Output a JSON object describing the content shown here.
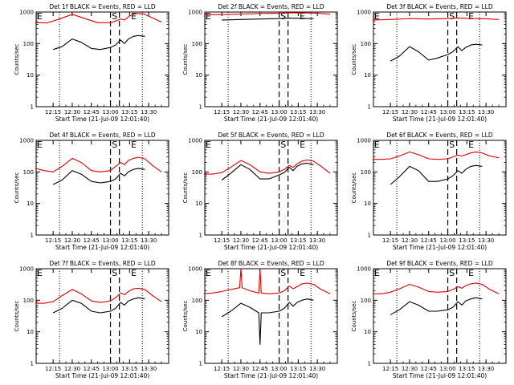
{
  "figure": {
    "background": "#ffffff",
    "series_colors": {
      "events": "#000000",
      "lld": "#e00000"
    }
  },
  "chart_data": [
    {
      "type": "line",
      "title": "Det 1f BLACK = Events, RED = LLD",
      "xlabel": "Start Time (21-Jul-09 12:01:40)",
      "ylabel": "Counts/sec",
      "yscale": "log",
      "ylim": [
        1,
        1000
      ],
      "y_ticks": [
        "1",
        "10",
        "100",
        "1000"
      ],
      "x_ticks": [
        "12:15",
        "12:30",
        "12:45",
        "13:00",
        "13:15",
        "13:30"
      ],
      "vline_labels": [
        "E",
        "S",
        "E"
      ],
      "series": [
        {
          "color": "black",
          "x": [
            "12:15",
            "12:22",
            "12:30",
            "12:37",
            "12:45",
            "12:52",
            "13:00",
            "13:04",
            "13:08",
            "13:11",
            "13:14",
            "13:18",
            "13:22",
            "13:27"
          ],
          "values": [
            65,
            80,
            140,
            110,
            70,
            65,
            75,
            90,
            130,
            100,
            140,
            170,
            180,
            170
          ]
        },
        {
          "color": "red",
          "x": [
            "12:01",
            "12:10",
            "12:20",
            "12:30",
            "12:40",
            "12:50",
            "13:00",
            "13:04",
            "13:08",
            "13:11",
            "13:15",
            "13:20",
            "13:26",
            "13:33",
            "13:40"
          ],
          "values": [
            460,
            450,
            600,
            850,
            620,
            460,
            460,
            520,
            600,
            560,
            750,
            900,
            880,
            650,
            480
          ]
        }
      ]
    },
    {
      "type": "line",
      "title": "Det 2f BLACK = Events, RED = LLD",
      "xlabel": "Start Time (21-Jul-09 12:01:40)",
      "ylabel": "Counts/sec",
      "yscale": "log",
      "ylim": [
        1,
        1000
      ],
      "y_ticks": [
        "1",
        "10",
        "100",
        "1000"
      ],
      "x_ticks": [
        "12:15",
        "12:30",
        "12:45",
        "13:00",
        "13:15",
        "13:30"
      ],
      "vline_labels": [
        "E",
        "S",
        "E"
      ],
      "series": [
        {
          "color": "black",
          "x": [
            "12:15",
            "12:30",
            "12:45",
            "13:00",
            "13:08",
            "13:15",
            "13:27"
          ],
          "values": [
            560,
            580,
            600,
            620,
            640,
            630,
            620
          ]
        },
        {
          "color": "red",
          "x": [
            "12:01",
            "12:15",
            "12:30",
            "12:45",
            "13:00",
            "13:08",
            "13:15",
            "13:30",
            "13:40"
          ],
          "values": [
            820,
            830,
            860,
            900,
            920,
            950,
            940,
            920,
            850
          ]
        }
      ]
    },
    {
      "type": "line",
      "title": "Det 3f BLACK = Events, RED = LLD",
      "xlabel": "Start Time (21-Jul-09 12:01:40)",
      "ylabel": "Counts/sec",
      "yscale": "log",
      "ylim": [
        1,
        1000
      ],
      "y_ticks": [
        "1",
        "10",
        "100",
        "1000"
      ],
      "x_ticks": [
        "12:15",
        "12:30",
        "12:45",
        "13:00",
        "13:15",
        "13:30"
      ],
      "vline_labels": [
        "E",
        "S",
        "E"
      ],
      "series": [
        {
          "color": "black",
          "x": [
            "12:15",
            "12:22",
            "12:30",
            "12:37",
            "12:45",
            "12:52",
            "13:00",
            "13:04",
            "13:08",
            "13:11",
            "13:14",
            "13:18",
            "13:22",
            "13:27"
          ],
          "values": [
            28,
            40,
            80,
            55,
            30,
            35,
            45,
            55,
            80,
            60,
            75,
            90,
            95,
            90
          ]
        },
        {
          "color": "red",
          "x": [
            "12:01",
            "12:15",
            "12:30",
            "12:45",
            "13:00",
            "13:08",
            "13:15",
            "13:30",
            "13:40"
          ],
          "values": [
            560,
            580,
            620,
            600,
            620,
            640,
            630,
            610,
            580
          ]
        }
      ]
    },
    {
      "type": "line",
      "title": "Det 4f BLACK = Events, RED = LLD",
      "xlabel": "Start Time (21-Jul-09 12:01:40)",
      "ylabel": "Counts/sec",
      "yscale": "log",
      "ylim": [
        1,
        1000
      ],
      "y_ticks": [
        "1",
        "10",
        "100",
        "1000"
      ],
      "x_ticks": [
        "12:15",
        "12:30",
        "12:45",
        "13:00",
        "13:15",
        "13:30"
      ],
      "vline_labels": [
        "E",
        "S",
        "E"
      ],
      "series": [
        {
          "color": "black",
          "x": [
            "12:15",
            "12:22",
            "12:30",
            "12:37",
            "12:45",
            "12:52",
            "13:00",
            "13:04",
            "13:08",
            "13:11",
            "13:14",
            "13:18",
            "13:22",
            "13:27"
          ],
          "values": [
            40,
            55,
            110,
            85,
            50,
            45,
            50,
            60,
            90,
            75,
            100,
            120,
            130,
            120
          ]
        },
        {
          "color": "red",
          "x": [
            "12:01",
            "12:08",
            "12:15",
            "12:22",
            "12:30",
            "12:37",
            "12:45",
            "12:52",
            "13:00",
            "13:04",
            "13:08",
            "13:11",
            "13:14",
            "13:18",
            "13:22",
            "13:27",
            "13:33",
            "13:40"
          ],
          "values": [
            130,
            110,
            100,
            150,
            270,
            200,
            110,
            100,
            110,
            150,
            200,
            170,
            230,
            270,
            290,
            260,
            160,
            100
          ]
        }
      ]
    },
    {
      "type": "line",
      "title": "Det 5f BLACK = Events, RED = LLD",
      "xlabel": "Start Time (21-Jul-09 12:01:40)",
      "ylabel": "Counts/sec",
      "yscale": "log",
      "ylim": [
        1,
        1000
      ],
      "y_ticks": [
        "1",
        "10",
        "100",
        "1000"
      ],
      "x_ticks": [
        "12:15",
        "12:30",
        "12:45",
        "13:00",
        "13:15",
        "13:30"
      ],
      "vline_labels": [
        "E",
        "S",
        "E"
      ],
      "series": [
        {
          "color": "black",
          "x": [
            "12:15",
            "12:22",
            "12:30",
            "12:37",
            "12:45",
            "12:52",
            "13:00",
            "13:04",
            "13:08",
            "13:11",
            "13:14",
            "13:18",
            "13:22",
            "13:27"
          ],
          "values": [
            55,
            90,
            170,
            120,
            60,
            60,
            80,
            95,
            140,
            110,
            150,
            180,
            190,
            170
          ]
        },
        {
          "color": "red",
          "x": [
            "12:01",
            "12:08",
            "12:15",
            "12:22",
            "12:30",
            "12:37",
            "12:45",
            "12:52",
            "13:00",
            "13:04",
            "13:08",
            "13:11",
            "13:14",
            "13:18",
            "13:22",
            "13:27",
            "13:33",
            "13:40"
          ],
          "values": [
            85,
            85,
            95,
            140,
            230,
            170,
            100,
            90,
            100,
            120,
            160,
            140,
            180,
            220,
            240,
            220,
            150,
            90
          ]
        }
      ]
    },
    {
      "type": "line",
      "title": "Det 6f BLACK = Events, RED = LLD",
      "xlabel": "Start Time (21-Jul-09 12:01:40)",
      "ylabel": "Counts/sec",
      "yscale": "log",
      "ylim": [
        1,
        1000
      ],
      "y_ticks": [
        "1",
        "10",
        "100",
        "1000"
      ],
      "x_ticks": [
        "12:15",
        "12:30",
        "12:45",
        "13:00",
        "13:15",
        "13:30"
      ],
      "vline_labels": [
        "E",
        "S",
        "E"
      ],
      "series": [
        {
          "color": "black",
          "x": [
            "12:15",
            "12:22",
            "12:30",
            "12:37",
            "12:45",
            "12:52",
            "13:00",
            "13:04",
            "13:08",
            "13:11",
            "13:14",
            "13:18",
            "13:22",
            "13:27"
          ],
          "values": [
            40,
            70,
            150,
            110,
            50,
            50,
            60,
            75,
            110,
            90,
            120,
            150,
            160,
            150
          ]
        },
        {
          "color": "red",
          "x": [
            "12:01",
            "12:08",
            "12:15",
            "12:22",
            "12:30",
            "12:37",
            "12:45",
            "12:52",
            "13:00",
            "13:04",
            "13:08",
            "13:11",
            "13:14",
            "13:18",
            "13:22",
            "13:27",
            "13:33",
            "13:40"
          ],
          "values": [
            250,
            250,
            260,
            320,
            430,
            350,
            260,
            250,
            260,
            300,
            340,
            320,
            350,
            400,
            430,
            400,
            320,
            280
          ]
        }
      ]
    },
    {
      "type": "line",
      "title": "Det 7f BLACK = Events, RED = LLD",
      "xlabel": "Start Time (21-Jul-09 12:01:40)",
      "ylabel": "Counts/sec",
      "yscale": "log",
      "ylim": [
        1,
        1000
      ],
      "y_ticks": [
        "1",
        "10",
        "100",
        "1000"
      ],
      "x_ticks": [
        "12:15",
        "12:30",
        "12:45",
        "13:00",
        "13:15",
        "13:30"
      ],
      "vline_labels": [
        "E",
        "S",
        "E"
      ],
      "series": [
        {
          "color": "black",
          "x": [
            "12:15",
            "12:22",
            "12:30",
            "12:37",
            "12:45",
            "12:52",
            "13:00",
            "13:04",
            "13:08",
            "13:11",
            "13:14",
            "13:18",
            "13:22",
            "13:27"
          ],
          "values": [
            40,
            55,
            100,
            80,
            45,
            40,
            45,
            55,
            85,
            70,
            95,
            110,
            120,
            110
          ]
        },
        {
          "color": "red",
          "x": [
            "12:01",
            "12:08",
            "12:15",
            "12:22",
            "12:30",
            "12:37",
            "12:45",
            "12:52",
            "13:00",
            "13:04",
            "13:08",
            "13:11",
            "13:14",
            "13:18",
            "13:22",
            "13:27",
            "13:33",
            "13:40"
          ],
          "values": [
            80,
            80,
            90,
            140,
            220,
            160,
            95,
            85,
            95,
            120,
            170,
            150,
            190,
            230,
            240,
            220,
            140,
            90
          ]
        }
      ]
    },
    {
      "type": "line",
      "title": "Det 8f BLACK = Events, RED = LLD",
      "xlabel": "Start Time (21-Jul-09 12:01:40)",
      "ylabel": "Counts/sec",
      "yscale": "log",
      "ylim": [
        1,
        1000
      ],
      "y_ticks": [
        "1",
        "10",
        "100",
        "1000"
      ],
      "x_ticks": [
        "12:15",
        "12:30",
        "12:45",
        "13:00",
        "13:15",
        "13:30"
      ],
      "vline_labels": [
        "E",
        "S",
        "E"
      ],
      "series": [
        {
          "color": "black",
          "x": [
            "12:15",
            "12:22",
            "12:30",
            "12:37",
            "12:44",
            "12:45",
            "12:46",
            "12:52",
            "13:00",
            "13:04",
            "13:08",
            "13:11",
            "13:14",
            "13:18",
            "13:22",
            "13:27"
          ],
          "values": [
            30,
            45,
            80,
            60,
            40,
            4,
            40,
            40,
            45,
            55,
            85,
            65,
            85,
            100,
            110,
            100
          ]
        },
        {
          "color": "red",
          "x": [
            "12:01",
            "12:08",
            "12:15",
            "12:22",
            "12:29",
            "12:30",
            "12:31",
            "12:37",
            "12:44",
            "12:45",
            "12:46",
            "12:52",
            "13:00",
            "13:04",
            "13:08",
            "13:11",
            "13:14",
            "13:18",
            "13:22",
            "13:27",
            "13:33",
            "13:40"
          ],
          "values": [
            160,
            170,
            190,
            220,
            250,
            1000,
            250,
            200,
            170,
            1000,
            170,
            160,
            170,
            200,
            280,
            230,
            270,
            330,
            350,
            320,
            220,
            160
          ]
        }
      ]
    },
    {
      "type": "line",
      "title": "Det 9f BLACK = Events, RED = LLD",
      "xlabel": "Start Time (21-Jul-09 12:01:40)",
      "ylabel": "Counts/sec",
      "yscale": "log",
      "ylim": [
        1,
        1000
      ],
      "y_ticks": [
        "1",
        "10",
        "100",
        "1000"
      ],
      "x_ticks": [
        "12:15",
        "12:30",
        "12:45",
        "13:00",
        "13:15",
        "13:30"
      ],
      "vline_labels": [
        "E",
        "S",
        "E"
      ],
      "series": [
        {
          "color": "black",
          "x": [
            "12:15",
            "12:22",
            "12:30",
            "12:37",
            "12:45",
            "12:52",
            "13:00",
            "13:04",
            "13:08",
            "13:11",
            "13:14",
            "13:18",
            "13:22",
            "13:27"
          ],
          "values": [
            35,
            50,
            90,
            70,
            45,
            45,
            50,
            60,
            90,
            70,
            95,
            110,
            120,
            110
          ]
        },
        {
          "color": "red",
          "x": [
            "12:01",
            "12:08",
            "12:15",
            "12:22",
            "12:30",
            "12:37",
            "12:45",
            "12:52",
            "13:00",
            "13:04",
            "13:08",
            "13:11",
            "13:14",
            "13:18",
            "13:22",
            "13:27",
            "13:33",
            "13:40"
          ],
          "values": [
            160,
            160,
            180,
            230,
            320,
            260,
            190,
            180,
            190,
            220,
            270,
            240,
            290,
            330,
            350,
            320,
            220,
            160
          ]
        }
      ]
    }
  ]
}
